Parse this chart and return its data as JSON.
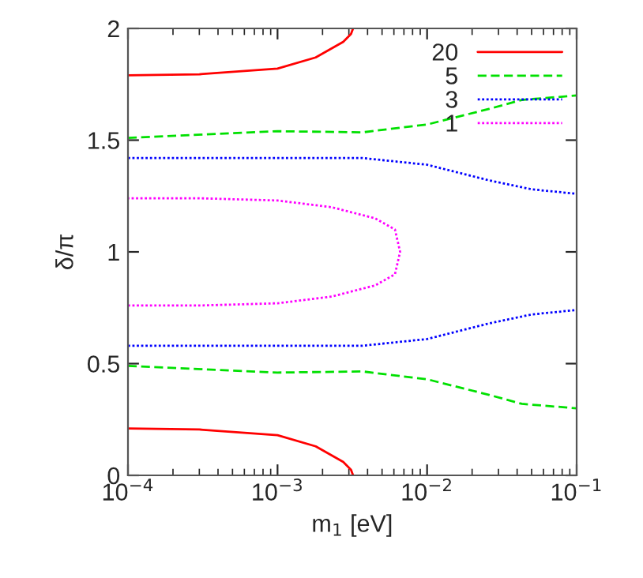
{
  "chart_data": {
    "type": "line",
    "xlabel": "m$_{1}$ [eV]",
    "ylabel": "δ/π",
    "log": "x",
    "xlim": [
      0.0001,
      0.1
    ],
    "xticks": [
      {
        "value": 0.0001,
        "label": "10$^{−4}$"
      },
      {
        "value": 0.001,
        "label": "10$^{−3}$"
      },
      {
        "value": 0.01,
        "label": "10$^{−2}$"
      },
      {
        "value": 0.1,
        "label": "10$^{−1}$"
      }
    ],
    "ylim": [
      0,
      2
    ],
    "yticks": [
      0,
      0.5,
      1,
      1.5,
      2
    ],
    "grid": false,
    "legend": "top right",
    "marker": "none",
    "series": [
      {
        "name": "20",
        "color": "#ff0000",
        "line_style": "solid",
        "x": [
          0.0001,
          0.0003,
          0.001,
          0.0018,
          0.00275,
          0.0031,
          0.0032,
          null,
          0.0032,
          0.0031,
          0.00275,
          0.0018,
          0.001,
          0.0003,
          0.0001
        ],
        "values": [
          0.21,
          0.205,
          0.18,
          0.13,
          0.06,
          0.025,
          0,
          null,
          2,
          1.975,
          1.94,
          1.87,
          1.82,
          1.795,
          1.79
        ]
      },
      {
        "name": "5",
        "color": "#00e000",
        "line_style": "dashed",
        "x": [
          0.0001,
          0.001,
          0.0037,
          0.01,
          0.026,
          0.043,
          0.1,
          null,
          0.0001,
          0.001,
          0.0037,
          0.01,
          0.026,
          0.043,
          0.1
        ],
        "values": [
          0.49,
          0.46,
          0.465,
          0.43,
          0.36,
          0.32,
          0.3,
          null,
          1.51,
          1.54,
          1.535,
          1.57,
          1.64,
          1.68,
          1.7
        ]
      },
      {
        "name": "3",
        "color": "#0000ff",
        "line_style": "dotted",
        "x": [
          0.0001,
          0.001,
          0.0037,
          0.01,
          0.026,
          0.05,
          0.1,
          null,
          0.0001,
          0.001,
          0.0037,
          0.01,
          0.026,
          0.05,
          0.1
        ],
        "values": [
          0.58,
          0.58,
          0.58,
          0.61,
          0.68,
          0.72,
          0.74,
          null,
          1.42,
          1.42,
          1.42,
          1.39,
          1.32,
          1.28,
          1.26
        ]
      },
      {
        "name": "1",
        "color": "#ff00ff",
        "line_style": "dotted",
        "x": [
          0.0001,
          0.0003,
          0.001,
          0.0023,
          0.0045,
          0.0061,
          0.0066,
          0.0061,
          0.0045,
          0.0023,
          0.001,
          0.0003,
          0.0001
        ],
        "values": [
          0.76,
          0.76,
          0.77,
          0.8,
          0.85,
          0.9,
          1.0,
          1.1,
          1.15,
          1.2,
          1.23,
          1.24,
          1.24
        ]
      }
    ]
  }
}
